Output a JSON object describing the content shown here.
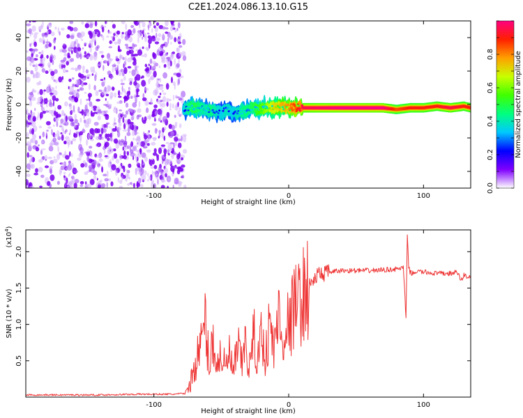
{
  "figure": {
    "title": "C2E1.2024.086.13.10.G15"
  },
  "chart_data": [
    {
      "type": "heatmap",
      "xlabel": "Height of straight line (km)",
      "ylabel": "Frequency (Hz)",
      "xlim": [
        -195,
        135
      ],
      "ylim": [
        -50,
        50
      ],
      "xticks": [
        -100,
        0,
        100
      ],
      "yticks": [
        -40,
        -20,
        0,
        20,
        40
      ],
      "grid": false,
      "noise_region_x": [
        -195,
        -80
      ],
      "signal_line": [
        {
          "x": -78,
          "y": -3,
          "a": 0.35
        },
        {
          "x": -74,
          "y": -2,
          "a": 0.45
        },
        {
          "x": -70,
          "y": -2,
          "a": 0.5
        },
        {
          "x": -66,
          "y": -2,
          "a": 0.45
        },
        {
          "x": -62,
          "y": -3,
          "a": 0.4
        },
        {
          "x": -58,
          "y": -4,
          "a": 0.45
        },
        {
          "x": -54,
          "y": -4,
          "a": 0.4
        },
        {
          "x": -50,
          "y": -4,
          "a": 0.35
        },
        {
          "x": -46,
          "y": -3,
          "a": 0.4
        },
        {
          "x": -42,
          "y": -5,
          "a": 0.35
        },
        {
          "x": -38,
          "y": -5,
          "a": 0.4
        },
        {
          "x": -34,
          "y": -4,
          "a": 0.45
        },
        {
          "x": -30,
          "y": -3,
          "a": 0.45
        },
        {
          "x": -26,
          "y": -2,
          "a": 0.5
        },
        {
          "x": -22,
          "y": -3,
          "a": 0.55
        },
        {
          "x": -18,
          "y": -2,
          "a": 0.6
        },
        {
          "x": -12,
          "y": -2,
          "a": 0.7
        },
        {
          "x": -6,
          "y": -1,
          "a": 0.75
        },
        {
          "x": 0,
          "y": -2,
          "a": 0.8
        },
        {
          "x": 10,
          "y": -2,
          "a": 0.95
        },
        {
          "x": 40,
          "y": -2,
          "a": 1.0
        },
        {
          "x": 70,
          "y": -2,
          "a": 1.0
        },
        {
          "x": 80,
          "y": -3,
          "a": 0.85
        },
        {
          "x": 90,
          "y": -2,
          "a": 0.9
        },
        {
          "x": 100,
          "y": -2,
          "a": 0.9
        },
        {
          "x": 110,
          "y": -1,
          "a": 0.9
        },
        {
          "x": 120,
          "y": -2,
          "a": 0.95
        },
        {
          "x": 130,
          "y": -1,
          "a": 0.9
        },
        {
          "x": 135,
          "y": -2,
          "a": 0.9
        }
      ],
      "colorbar": {
        "label": "Normalized spectral amplitude",
        "range": [
          0,
          1
        ],
        "ticks": [
          0.0,
          0.2,
          0.4,
          0.6,
          0.8
        ],
        "tick_labels": [
          "0.0",
          "0.2",
          "0.4",
          "0.6",
          "0.8"
        ],
        "colors": [
          "#ffffff",
          "#8000ff",
          "#0000ff",
          "#00c8ff",
          "#00ff80",
          "#40ff00",
          "#c8ff00",
          "#ffa000",
          "#ff2000",
          "#ff0080"
        ]
      }
    },
    {
      "type": "line",
      "xlabel": "Height of straight line (km)",
      "ylabel": "SNR (10 * v/v)",
      "multiplier": "(x10",
      "multiplier_exp": "4",
      "multiplier_close": ")",
      "xlim": [
        -195,
        135
      ],
      "ylim": [
        0,
        2.3
      ],
      "xticks": [
        -100,
        0,
        100
      ],
      "yticks": [
        0.5,
        1.0,
        1.5,
        2.0
      ],
      "ytick_labels": [
        "0.5",
        "1.0",
        "1.5",
        "2.0"
      ],
      "line_color": "#ee3333",
      "series": [
        {
          "x": [
            -195,
            -170,
            -140,
            -110,
            -85,
            -77,
            -72,
            -68,
            -65,
            -62,
            -59,
            -56,
            -53,
            -50,
            -47,
            -44,
            -41,
            -38,
            -35,
            -32,
            -29,
            -26,
            -23,
            -20,
            -17,
            -14,
            -11,
            -8,
            -5,
            -2,
            1,
            4,
            7,
            10,
            13,
            16,
            19,
            22,
            25,
            30,
            35,
            40,
            50,
            60,
            70,
            80,
            85,
            87,
            88,
            89,
            90,
            92,
            95,
            100,
            110,
            120,
            125,
            128,
            130,
            132,
            135
          ],
          "values": [
            0.03,
            0.03,
            0.03,
            0.04,
            0.04,
            0.05,
            0.25,
            0.55,
            0.7,
            1.05,
            0.45,
            0.8,
            0.4,
            0.65,
            0.35,
            0.6,
            0.3,
            0.7,
            0.45,
            0.75,
            0.4,
            0.85,
            0.5,
            0.9,
            0.55,
            1.05,
            0.6,
            1.2,
            0.75,
            1.05,
            0.95,
            1.3,
            1.25,
            1.4,
            1.45,
            1.55,
            1.62,
            1.68,
            1.7,
            1.72,
            1.73,
            1.74,
            1.74,
            1.74,
            1.75,
            1.76,
            1.78,
            1.1,
            2.2,
            1.8,
            1.72,
            1.7,
            1.73,
            1.72,
            1.7,
            1.7,
            1.72,
            1.6,
            1.68,
            1.66,
            1.65
          ]
        }
      ]
    }
  ]
}
